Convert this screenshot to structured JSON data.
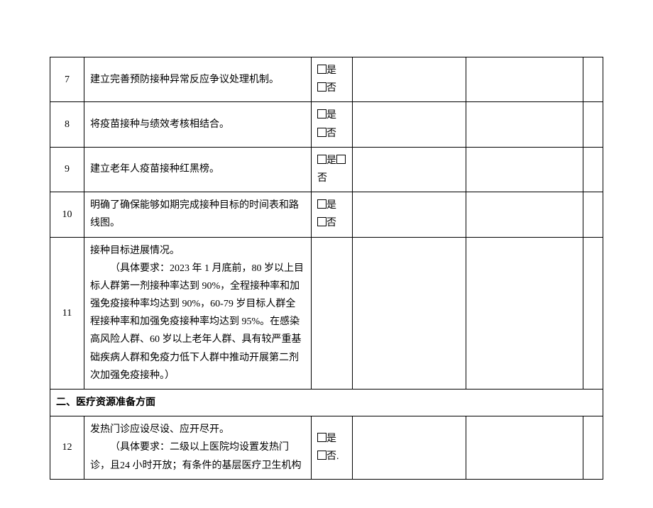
{
  "check_yes": "是",
  "check_no": "否",
  "checkbox_glyph": "☐",
  "rows": [
    {
      "num": "7",
      "desc": "建立完善预防接种异常反应争议处理机制。"
    },
    {
      "num": "8",
      "desc": "将疫苗接种与绩效考核相结合。"
    },
    {
      "num": "9",
      "desc": "建立老年人疫苗接种红黑榜。"
    },
    {
      "num": "10",
      "desc": "明确了确保能够如期完成接种目标的时间表和路线图。"
    },
    {
      "num": "11",
      "desc_line1": "接种目标进展情况。",
      "desc_detail": "（具体要求：2023 年 1 月底前，80 岁以上目标人群第一剂接种率达到 90%，全程接种率和加强免疫接种率均达到 90%，60-79 岁目标人群全程接种率和加强免疫接种率均达到 95%。在感染高风险人群、60 岁以上老年人群、具有较严重基础疾病人群和免疫力低下人群中推动开展第二剂次加强免疫接种。）"
    },
    {
      "num": "12",
      "desc_line1": "发热门诊应设尽设、应开尽开。",
      "desc_detail": "（具体要求：二级以上医院均设置发热门诊，且24 小时开放；有条件的基层医疗卫生机构"
    }
  ],
  "section2": "二、医疗资源准备方面"
}
